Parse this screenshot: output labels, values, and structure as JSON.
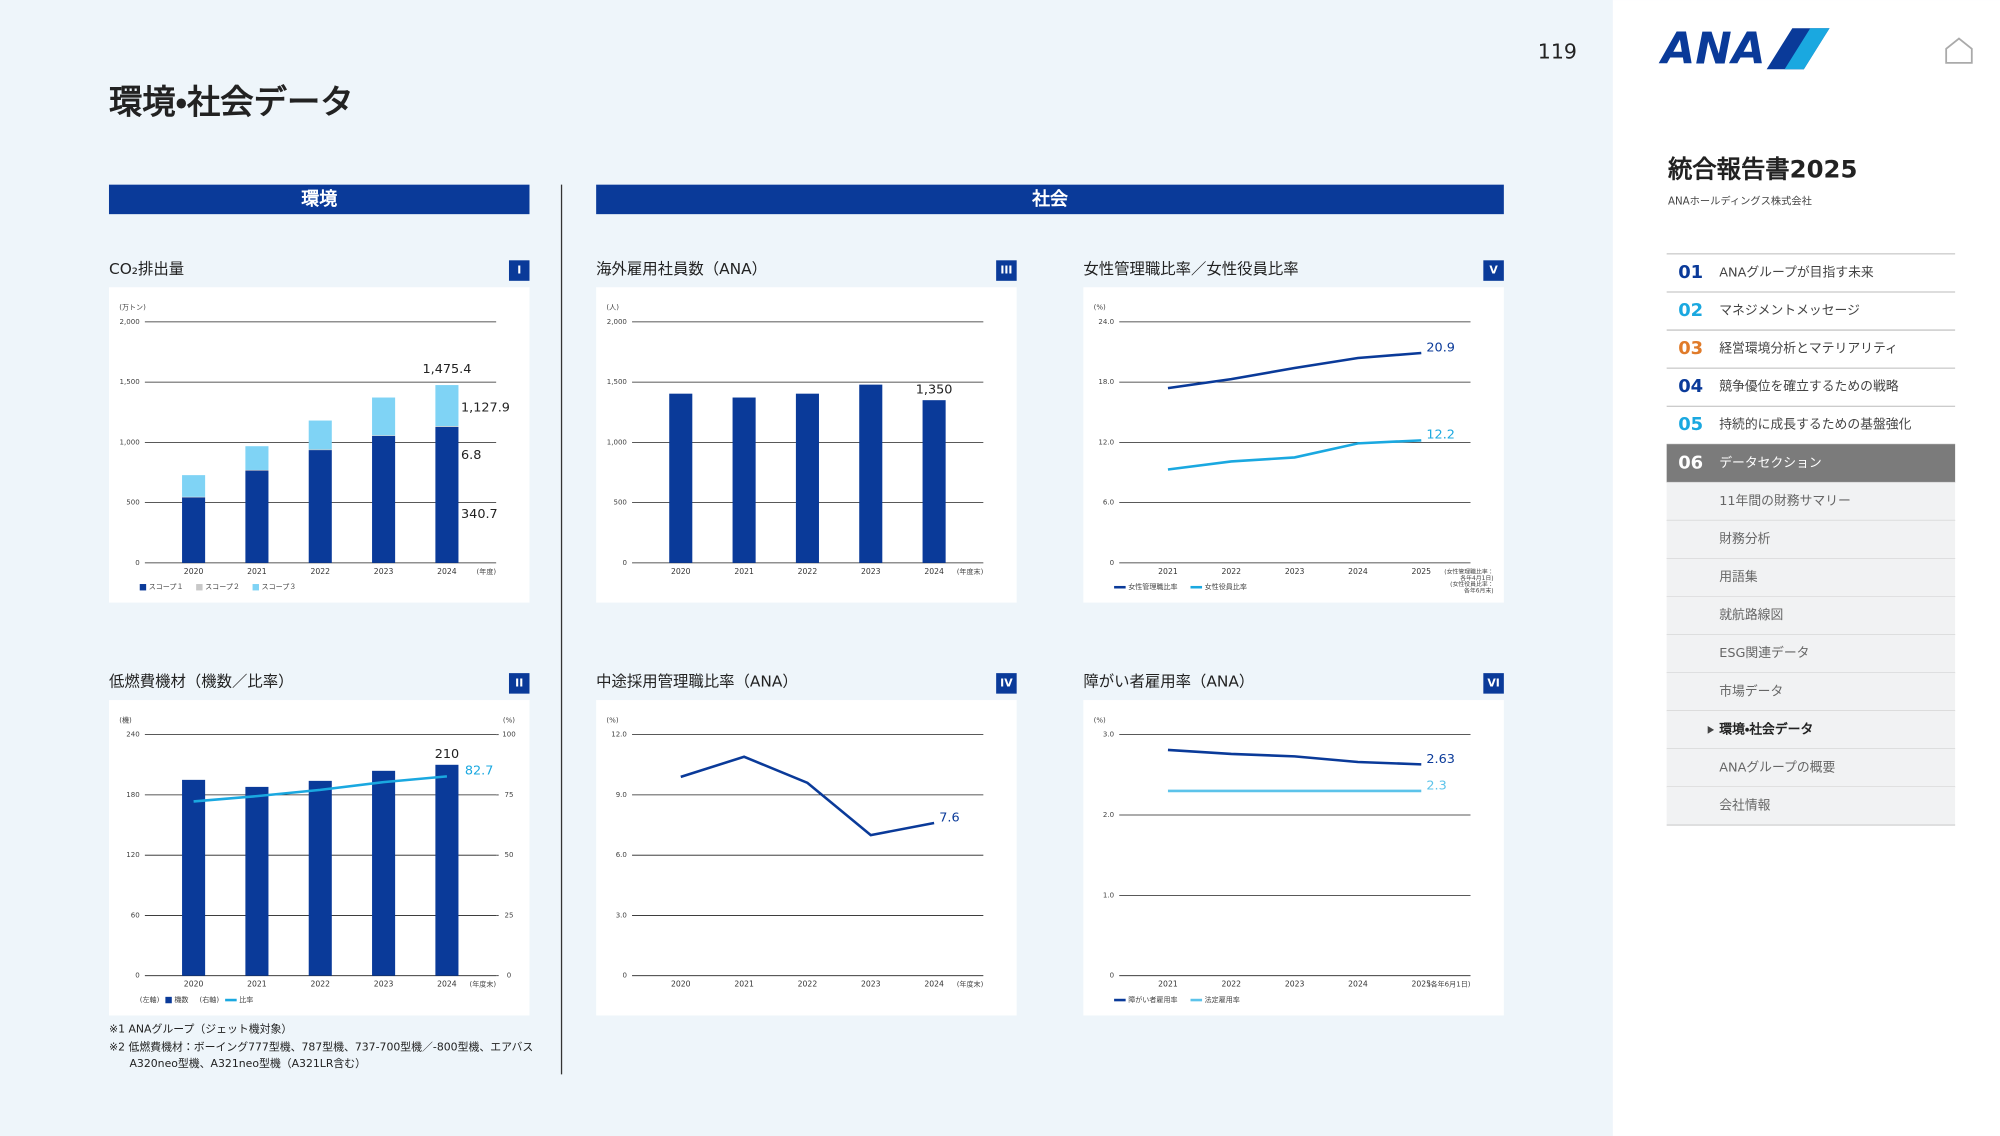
{
  "page": {
    "title": "環境・社会データ",
    "page_number": "119",
    "section_env": "環境",
    "section_soc": "社会",
    "footnotes": [
      "※1 ANAグループ（ジェット機対象）",
      "※2 低燃費機材：ボーイング777型機、787型機、737-700型機／-800型機、エアバス",
      "A320neo型機、A321neo型機（A321LR含む）"
    ]
  },
  "sidebar": {
    "logo": "ANA",
    "report_title": "統合報告書2025",
    "company": "ANAホールディングス株式会社",
    "menu": [
      {
        "num": "01",
        "label": "ANAグループが目指す未来"
      },
      {
        "num": "02",
        "label": "マネジメントメッセージ"
      },
      {
        "num": "03",
        "label": "経営環境分析とマテリアリティ"
      },
      {
        "num": "04",
        "label": "競争優位を確立するための戦略"
      },
      {
        "num": "05",
        "label": "持続的に成長するための基盤強化"
      },
      {
        "num": "06",
        "label": "データセクション"
      }
    ],
    "submenu": [
      "11年間の財務サマリー",
      "財務分析",
      "用語集",
      "就航路線図",
      "ESG関連データ",
      "市場データ",
      "環境・社会データ",
      "ANAグループの概要",
      "会社情報"
    ]
  },
  "chart_data": [
    {
      "type": "bar",
      "stacked": true,
      "title": "CO₂排出量",
      "badge": "I",
      "y_unit": "(万トン)",
      "x_unit": "(年度)",
      "categories": [
        "2020",
        "2021",
        "2022",
        "2023",
        "2024"
      ],
      "series": [
        {
          "name": "スコープ１",
          "color": "#0a3a99",
          "values": [
            543,
            766,
            936,
            1053,
            1127.9
          ],
          "value_labels": [
            null,
            null,
            null,
            null,
            "1,127.9"
          ]
        },
        {
          "name": "スコープ２",
          "color": "#c8c8c8",
          "values": [
            5,
            5,
            5,
            5,
            6.8
          ],
          "value_labels": [
            null,
            null,
            null,
            null,
            "6.8"
          ]
        },
        {
          "name": "スコープ３",
          "color": "#7fd3f5",
          "values": [
            180,
            197,
            240,
            314,
            340.7
          ],
          "value_labels": [
            null,
            null,
            null,
            null,
            "340.7"
          ]
        }
      ],
      "annotations": [
        {
          "label": "1,475.4",
          "x": "2024",
          "value": 1475.4
        }
      ],
      "ylim": [
        0,
        2000
      ],
      "yticks": [
        0,
        500,
        {
          "value": 1000,
          "label": "1,000"
        },
        {
          "value": 1500,
          "label": "1,500"
        },
        {
          "value": 2000,
          "label": "2,000"
        }
      ],
      "grid": true
    },
    {
      "type": "combo",
      "title": "低燃費機材（機数／比率）",
      "badge": "II",
      "y_unit": "(機)",
      "y2_unit": "(%)",
      "x_unit": "(年度末)",
      "categories": [
        "2020",
        "2021",
        "2022",
        "2023",
        "2024"
      ],
      "series": [
        {
          "name": "機数",
          "legend_note": "(左軸)",
          "type": "bar",
          "color": "#0a3a99",
          "values": [
            195,
            188,
            194,
            204,
            210
          ],
          "value_labels": [
            null,
            null,
            null,
            null,
            "210"
          ]
        },
        {
          "name": "比率",
          "legend_note": "(右軸)",
          "type": "line",
          "axis": "y2",
          "color": "#1aa8e0",
          "values": [
            72.3,
            74.5,
            77.1,
            80.3,
            82.7
          ],
          "value_labels": [
            null,
            null,
            null,
            null,
            "82.7"
          ]
        }
      ],
      "ylim": [
        0,
        240
      ],
      "yticks": [
        0,
        60,
        120,
        180,
        240
      ],
      "y2lim": [
        0,
        100
      ],
      "y2ticks": [
        0,
        25,
        50,
        75,
        100
      ],
      "grid": true
    },
    {
      "type": "bar",
      "title": "海外雇用社員数（ANA）",
      "badge": "III",
      "y_unit": "(人)",
      "x_unit": "(年度末)",
      "categories": [
        "2020",
        "2021",
        "2022",
        "2023",
        "2024"
      ],
      "series": [
        {
          "color": "#0a3a99",
          "values": [
            1404,
            1372,
            1404,
            1479,
            1350
          ],
          "value_labels": [
            null,
            null,
            null,
            null,
            "1,350"
          ]
        }
      ],
      "ylim": [
        0,
        2000
      ],
      "yticks": [
        0,
        500,
        {
          "value": 1000,
          "label": "1,000"
        },
        {
          "value": 1500,
          "label": "1,500"
        },
        {
          "value": 2000,
          "label": "2,000"
        }
      ],
      "grid": true
    },
    {
      "type": "line",
      "title": "中途採用管理職比率（ANA）",
      "badge": "IV",
      "y_unit": "(%)",
      "x_unit": "(年度末)",
      "categories": [
        "2020",
        "2021",
        "2022",
        "2023",
        "2024"
      ],
      "series": [
        {
          "color": "#0a3a99",
          "values": [
            9.9,
            10.9,
            9.6,
            7.0,
            7.6
          ],
          "value_labels": [
            null,
            null,
            null,
            null,
            "7.6"
          ]
        }
      ],
      "ylim": [
        0,
        12
      ],
      "yticks": [
        0,
        {
          "value": 3,
          "label": "3.0"
        },
        {
          "value": 6,
          "label": "6.0"
        },
        {
          "value": 9,
          "label": "9.0"
        },
        {
          "value": 12,
          "label": "12.0"
        }
      ],
      "grid": true
    },
    {
      "type": "line",
      "title": "女性管理職比率／女性役員比率",
      "badge": "V",
      "y_unit": "(%)",
      "x_unit": [
        "(女性管理職比率：",
        "各年4月1日)",
        "(女性役員比率：",
        "各年6月末)"
      ],
      "categories": [
        "2021",
        "2022",
        "2023",
        "2024",
        "2025"
      ],
      "series": [
        {
          "name": "女性管理職比率",
          "color": "#0a3a99",
          "values": [
            17.4,
            18.3,
            19.4,
            20.4,
            20.9
          ],
          "value_labels": [
            null,
            null,
            null,
            null,
            "20.9"
          ]
        },
        {
          "name": "女性役員比率",
          "color": "#1aa8e0",
          "values": [
            9.3,
            10.1,
            10.5,
            11.9,
            12.2
          ],
          "value_labels": [
            null,
            null,
            null,
            null,
            "12.2"
          ]
        }
      ],
      "ylim": [
        0,
        24
      ],
      "yticks": [
        0,
        {
          "value": 6,
          "label": "6.0"
        },
        {
          "value": 12,
          "label": "12.0"
        },
        {
          "value": 18,
          "label": "18.0"
        },
        {
          "value": 24,
          "label": "24.0"
        }
      ],
      "grid": true
    },
    {
      "type": "line",
      "title": "障がい者雇用率（ANA）",
      "badge": "VI",
      "y_unit": "(%)",
      "x_unit": "(各年6月1日)",
      "categories": [
        "2021",
        "2022",
        "2023",
        "2024",
        "2025"
      ],
      "series": [
        {
          "name": "障がい者雇用率",
          "color": "#0a3a99",
          "values": [
            2.81,
            2.76,
            2.73,
            2.66,
            2.63
          ],
          "value_labels": [
            null,
            null,
            null,
            null,
            "2.63"
          ]
        },
        {
          "name": "法定雇用率",
          "color": "#5cc3ea",
          "values": [
            2.3,
            2.3,
            2.3,
            2.3,
            2.3
          ],
          "value_labels": [
            null,
            null,
            null,
            null,
            "2.3"
          ]
        }
      ],
      "ylim": [
        0,
        3
      ],
      "yticks": [
        0,
        {
          "value": 1,
          "label": "1.0"
        },
        {
          "value": 2,
          "label": "2.0"
        },
        {
          "value": 3,
          "label": "3.0"
        }
      ],
      "grid": true
    }
  ]
}
